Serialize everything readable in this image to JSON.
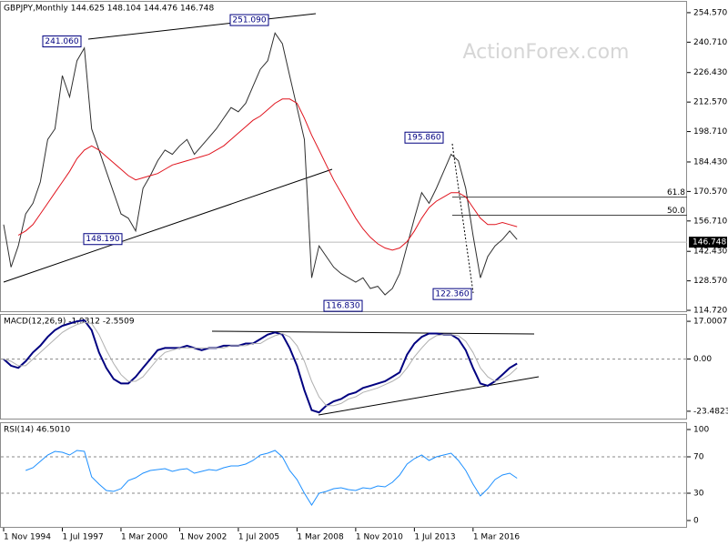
{
  "chart_data": [
    {
      "type": "line",
      "title": "GBPJPY,Monthly 144.625 148.104 144.476 146.748",
      "watermark": "ActionForex.com",
      "ylim": [
        114.3,
        259.67
      ],
      "yticks": [
        {
          "value": 254.57,
          "label": "254.570"
        },
        {
          "value": 240.71,
          "label": "240.710"
        },
        {
          "value": 226.43,
          "label": "226.430"
        },
        {
          "value": 212.57,
          "label": "212.570"
        },
        {
          "value": 198.71,
          "label": "198.710"
        },
        {
          "value": 184.43,
          "label": "184.430"
        },
        {
          "value": 170.57,
          "label": "170.570"
        },
        {
          "value": 156.71,
          "label": "156.710"
        },
        {
          "value": 142.43,
          "label": "142.430"
        },
        {
          "value": 128.57,
          "label": "128.570"
        },
        {
          "value": 114.72,
          "label": "114.720"
        }
      ],
      "grid": false,
      "series": [
        {
          "color": "#2f2f2f",
          "values": [
            155,
            135,
            145,
            160,
            165,
            175,
            195,
            200,
            225,
            215,
            232,
            238,
            200,
            190,
            180,
            170,
            160,
            158,
            152,
            172,
            178,
            185,
            190,
            188,
            192,
            195,
            188,
            192,
            196,
            200,
            205,
            210,
            208,
            212,
            220,
            228,
            232,
            245,
            240,
            225,
            210,
            195,
            130,
            145,
            140,
            135,
            132,
            130,
            128,
            130,
            125,
            126,
            122,
            125,
            132,
            145,
            158,
            170,
            165,
            172,
            180,
            188,
            185,
            172,
            150,
            130,
            140,
            145,
            148,
            152,
            148
          ]
        },
        {
          "color": "#e0141e",
          "values": [
            null,
            null,
            150,
            152,
            155,
            160,
            165,
            170,
            175,
            180,
            186,
            190,
            192,
            190,
            187,
            184,
            181,
            178,
            176,
            177,
            178,
            179,
            181,
            183,
            184,
            185,
            186,
            187,
            188,
            190,
            192,
            195,
            198,
            201,
            204,
            206,
            209,
            212,
            214,
            214,
            212,
            205,
            197,
            190,
            183,
            176,
            170,
            164,
            158,
            153,
            149,
            146,
            144,
            143,
            144,
            147,
            152,
            158,
            163,
            166,
            168,
            170,
            170,
            168,
            163,
            158,
            155,
            155,
            156,
            155,
            154
          ]
        }
      ],
      "price_labels": [
        {
          "value": 241.06,
          "label": "241.060"
        },
        {
          "value": 251.09,
          "label": "251.090"
        },
        {
          "value": 148.19,
          "label": "148.190"
        },
        {
          "value": 116.83,
          "label": "116.830"
        },
        {
          "value": 195.86,
          "label": "195.860"
        },
        {
          "value": 122.36,
          "label": "122.360"
        }
      ],
      "levels": [
        {
          "name": "61.8",
          "price": 167.9
        },
        {
          "name": "50.0",
          "price": 159.4
        }
      ],
      "current_price": {
        "value": 146.748,
        "label": "146.748"
      }
    },
    {
      "type": "line",
      "title": "MACD(12,26,9) -1.9312 -2.5509",
      "ylim": [
        -26.8,
        19.9
      ],
      "yticks": [
        {
          "value": 17.0007,
          "label": "17.0007"
        },
        {
          "value": 0,
          "label": "0.00"
        },
        {
          "value": -23.4823,
          "label": "-23.4823"
        }
      ],
      "grid": true,
      "series": [
        {
          "color": "#000080",
          "values": [
            0,
            -3,
            -4,
            -1,
            3,
            6,
            10,
            13,
            15,
            16,
            17,
            17.5,
            13,
            3,
            -4,
            -9,
            -11,
            -11,
            -8,
            -4,
            0,
            4,
            5,
            5,
            5,
            6,
            5,
            4,
            5,
            5,
            6,
            6,
            6,
            7,
            7,
            9,
            11,
            12,
            11,
            5,
            -3,
            -14,
            -23,
            -24,
            -21,
            -19,
            -18,
            -16,
            -15,
            -13,
            -12,
            -11,
            -10,
            -8,
            -6,
            2,
            7,
            10,
            11.5,
            11.5,
            11,
            11,
            9,
            4,
            -4,
            -11,
            -12,
            -10,
            -7,
            -4,
            -2
          ]
        },
        {
          "color": "#b0b0b0",
          "values": [
            0,
            -1,
            -3,
            -3,
            0,
            3,
            6,
            9,
            12,
            14,
            15.5,
            16.5,
            16,
            11,
            4,
            -2,
            -7,
            -10,
            -10,
            -8,
            -4,
            0,
            3,
            4,
            5,
            5,
            5,
            5,
            5,
            5,
            5,
            6,
            6,
            6,
            7,
            7,
            9,
            10.5,
            11.5,
            10,
            6,
            -1,
            -10,
            -17,
            -21,
            -21,
            -20,
            -18,
            -17,
            -15,
            -14,
            -13,
            -11.5,
            -10,
            -8,
            -4,
            1,
            5,
            8.5,
            10.5,
            11,
            11,
            10.5,
            8,
            3,
            -4,
            -8,
            -10,
            -9,
            -7,
            -4
          ]
        }
      ]
    },
    {
      "type": "line",
      "title": "RSI(14) 46.5010",
      "ylim": [
        -8,
        107
      ],
      "yticks": [
        100,
        70,
        30,
        0
      ],
      "grid": true,
      "categories": [
        "1 Nov 1994",
        null,
        null,
        null,
        null,
        null,
        null,
        null,
        "1 Jul 1997",
        null,
        null,
        null,
        null,
        null,
        null,
        null,
        "1 Mar 2000",
        null,
        null,
        null,
        null,
        null,
        null,
        null,
        "1 Nov 2002",
        null,
        null,
        null,
        null,
        null,
        null,
        null,
        "1 Jul 2005",
        null,
        null,
        null,
        null,
        null,
        null,
        null,
        "1 Mar 2008",
        null,
        null,
        null,
        null,
        null,
        null,
        null,
        "1 Nov 2010",
        null,
        null,
        null,
        null,
        null,
        null,
        null,
        "1 Jul 2013",
        null,
        null,
        null,
        null,
        null,
        null,
        null,
        "1 Mar 2016",
        null,
        null,
        null,
        null,
        null,
        null
      ],
      "series": [
        {
          "color": "#1e90ff",
          "values": [
            null,
            null,
            null,
            55,
            58,
            65,
            72,
            76,
            75,
            72,
            77,
            76,
            48,
            40,
            33,
            32,
            35,
            44,
            47,
            52,
            55,
            56,
            57,
            54,
            56,
            57,
            52,
            54,
            56,
            55,
            58,
            60,
            60,
            62,
            66,
            72,
            74,
            77,
            70,
            55,
            45,
            30,
            17,
            30,
            32,
            35,
            36,
            34,
            33,
            36,
            35,
            38,
            37,
            42,
            50,
            62,
            68,
            72,
            66,
            70,
            72,
            74,
            66,
            55,
            40,
            27,
            35,
            45,
            50,
            52,
            46.501
          ]
        }
      ]
    }
  ]
}
